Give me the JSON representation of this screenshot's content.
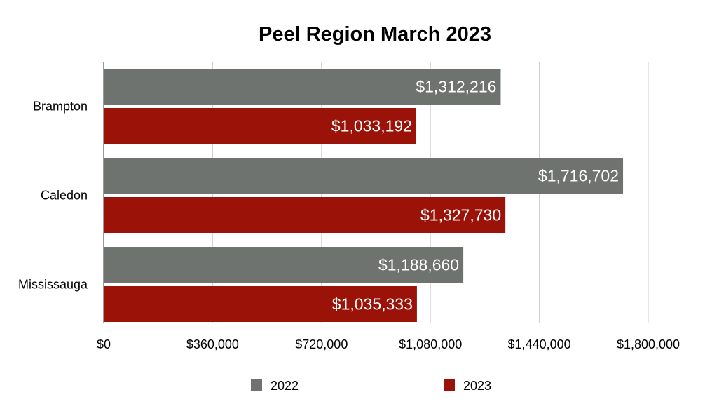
{
  "chart_data": {
    "type": "bar",
    "orientation": "horizontal",
    "title": "Peel Region March 2023",
    "xlabel": "",
    "ylabel": "",
    "categories": [
      "Brampton",
      "Caledon",
      "Mississauga"
    ],
    "series": [
      {
        "name": "2022",
        "color": "#6e7370",
        "values": [
          1312216,
          1716702,
          1188660
        ],
        "labels": [
          "$1,312,216",
          "$1,716,702",
          "$1,188,660"
        ]
      },
      {
        "name": "2023",
        "color": "#9a1208",
        "values": [
          1033192,
          1327730,
          1035333
        ],
        "labels": [
          "$1,033,192",
          "$1,327,730",
          "$1,035,333"
        ]
      }
    ],
    "xlim": [
      0,
      1800000
    ],
    "ticks": [
      0,
      360000,
      720000,
      1080000,
      1440000,
      1800000
    ],
    "tick_labels": [
      "$0",
      "$360,000",
      "$720,000",
      "$1,080,000",
      "$1,440,000",
      "$1,800,000"
    ],
    "grid": true,
    "legend_position": "bottom"
  }
}
